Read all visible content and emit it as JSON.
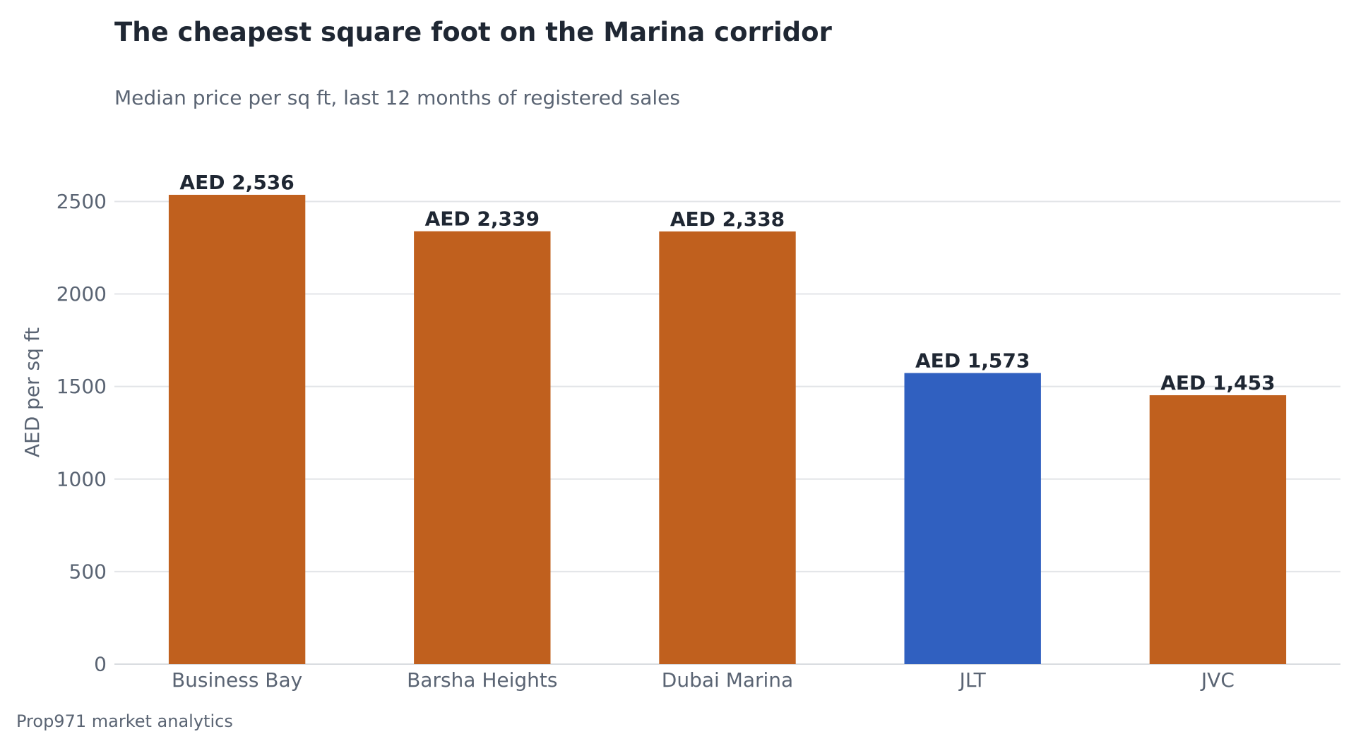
{
  "chart_data": {
    "type": "bar",
    "title": "The cheapest square foot on the Marina corridor",
    "subtitle": "Median price per sq ft, last 12 months of registered sales",
    "ylabel": "AED per sq ft",
    "xlabel": "",
    "categories": [
      "Business Bay",
      "Barsha Heights",
      "Dubai Marina",
      "JLT",
      "JVC"
    ],
    "values": [
      2536,
      2339,
      2338,
      1573,
      1453
    ],
    "data_labels": [
      "AED 2,536",
      "AED 2,339",
      "AED 2,338",
      "AED 1,573",
      "AED 1,453"
    ],
    "highlight": "JLT",
    "ylim": [
      0,
      2536
    ],
    "yticks": [
      0,
      500,
      1000,
      1500,
      2000,
      2500
    ],
    "ytick_labels": [
      "0",
      "500",
      "1000",
      "1500",
      "2000",
      "2500"
    ],
    "grid": "horizontal",
    "colors": {
      "bar": "#c0601e",
      "highlight": "#3060c0",
      "grid": "#e3e5e8",
      "axis": "#d9dce0"
    }
  },
  "footer": {
    "source": "Prop971 market analytics"
  }
}
